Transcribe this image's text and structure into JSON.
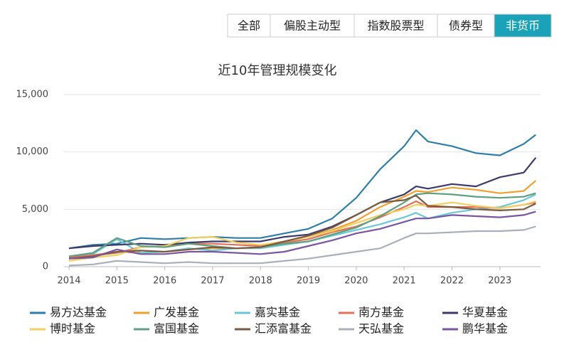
{
  "tabs": [
    "全部",
    "偏股主动型",
    "指数股票型",
    "债券型",
    "非货币"
  ],
  "selected_tab": 4,
  "chart_data": {
    "type": "line",
    "title": "近10年管理规模变化",
    "x": [
      2014,
      2014.5,
      2015,
      2015.5,
      2016,
      2016.5,
      2017,
      2017.5,
      2018,
      2018.5,
      2019,
      2019.5,
      2020,
      2020.5,
      2021,
      2021.25,
      2021.5,
      2022,
      2022.5,
      2023,
      2023.5,
      2023.75
    ],
    "xlim": [
      2014,
      2023.85
    ],
    "xticks": [
      2014,
      2015,
      2016,
      2017,
      2018,
      2019,
      2020,
      2021,
      2022,
      2023
    ],
    "ylim": [
      0,
      15000
    ],
    "yticks": [
      0,
      {
        "value": 5000,
        "label": "5,000"
      },
      {
        "value": 10000,
        "label": "10,000"
      },
      {
        "value": 15000,
        "label": "15,000"
      }
    ],
    "grid": true,
    "series": [
      {
        "name": "易方达基金",
        "color": "#2f7ea8",
        "values": [
          1600,
          1900,
          2000,
          2500,
          2400,
          2500,
          2600,
          2500,
          2500,
          2900,
          3300,
          4200,
          6000,
          8500,
          10500,
          11900,
          10900,
          10500,
          9900,
          9700,
          10700,
          11500
        ]
      },
      {
        "name": "广发基金",
        "color": "#f0a030",
        "values": [
          700,
          1000,
          1300,
          1200,
          1300,
          1500,
          1600,
          1600,
          1700,
          2200,
          2600,
          3200,
          4000,
          5200,
          6100,
          6600,
          6500,
          6900,
          6700,
          6400,
          6600,
          7500
        ]
      },
      {
        "name": "嘉实基金",
        "color": "#6cc6d4",
        "values": [
          900,
          1100,
          2400,
          1200,
          1300,
          1600,
          1400,
          1600,
          1600,
          1900,
          2200,
          2700,
          3200,
          3700,
          4300,
          4700,
          4200,
          4700,
          5000,
          5200,
          5800,
          6300
        ]
      },
      {
        "name": "南方基金",
        "color": "#e0705a",
        "values": [
          800,
          1000,
          1200,
          1700,
          1800,
          2000,
          2000,
          1900,
          1800,
          2100,
          2400,
          3000,
          3500,
          4300,
          5200,
          5700,
          5200,
          5200,
          5200,
          5100,
          5400,
          5600
        ]
      },
      {
        "name": "华夏基金",
        "color": "#3c3a6a",
        "values": [
          1600,
          1800,
          1900,
          2000,
          1900,
          2100,
          2200,
          2200,
          2200,
          2600,
          2800,
          3500,
          4500,
          5600,
          6300,
          7000,
          6800,
          7200,
          7000,
          7800,
          8200,
          9500
        ]
      },
      {
        "name": "博时基金",
        "color": "#f0d060",
        "values": [
          500,
          800,
          1000,
          1700,
          1800,
          2500,
          2600,
          2100,
          1900,
          2200,
          2600,
          3100,
          3800,
          4500,
          5000,
          5400,
          5300,
          5600,
          5300,
          5100,
          5400,
          5700
        ]
      },
      {
        "name": "富国基金",
        "color": "#5fa080",
        "values": [
          900,
          1200,
          2500,
          1800,
          1700,
          2000,
          1800,
          1600,
          1700,
          2000,
          2200,
          2800,
          3400,
          4400,
          5600,
          6300,
          6400,
          6300,
          6100,
          6000,
          6100,
          6400
        ]
      },
      {
        "name": "汇添富基金",
        "color": "#7a5a40",
        "values": [
          700,
          900,
          1300,
          1400,
          1300,
          1500,
          1700,
          1600,
          1700,
          2200,
          2700,
          3400,
          4500,
          5600,
          5800,
          6200,
          5300,
          5200,
          5000,
          4900,
          5000,
          5500
        ]
      },
      {
        "name": "天弘基金",
        "color": "#a8b0bc",
        "values": [
          100,
          200,
          500,
          400,
          300,
          400,
          300,
          300,
          300,
          500,
          700,
          1000,
          1300,
          1600,
          2500,
          2900,
          2900,
          3000,
          3100,
          3100,
          3200,
          3500
        ]
      },
      {
        "name": "鹏华基金",
        "color": "#7a55a0",
        "values": [
          700,
          800,
          1500,
          1100,
          1100,
          1300,
          1300,
          1200,
          1100,
          1300,
          1800,
          2300,
          2900,
          3300,
          3900,
          4200,
          4200,
          4500,
          4400,
          4300,
          4500,
          4800
        ]
      }
    ]
  }
}
